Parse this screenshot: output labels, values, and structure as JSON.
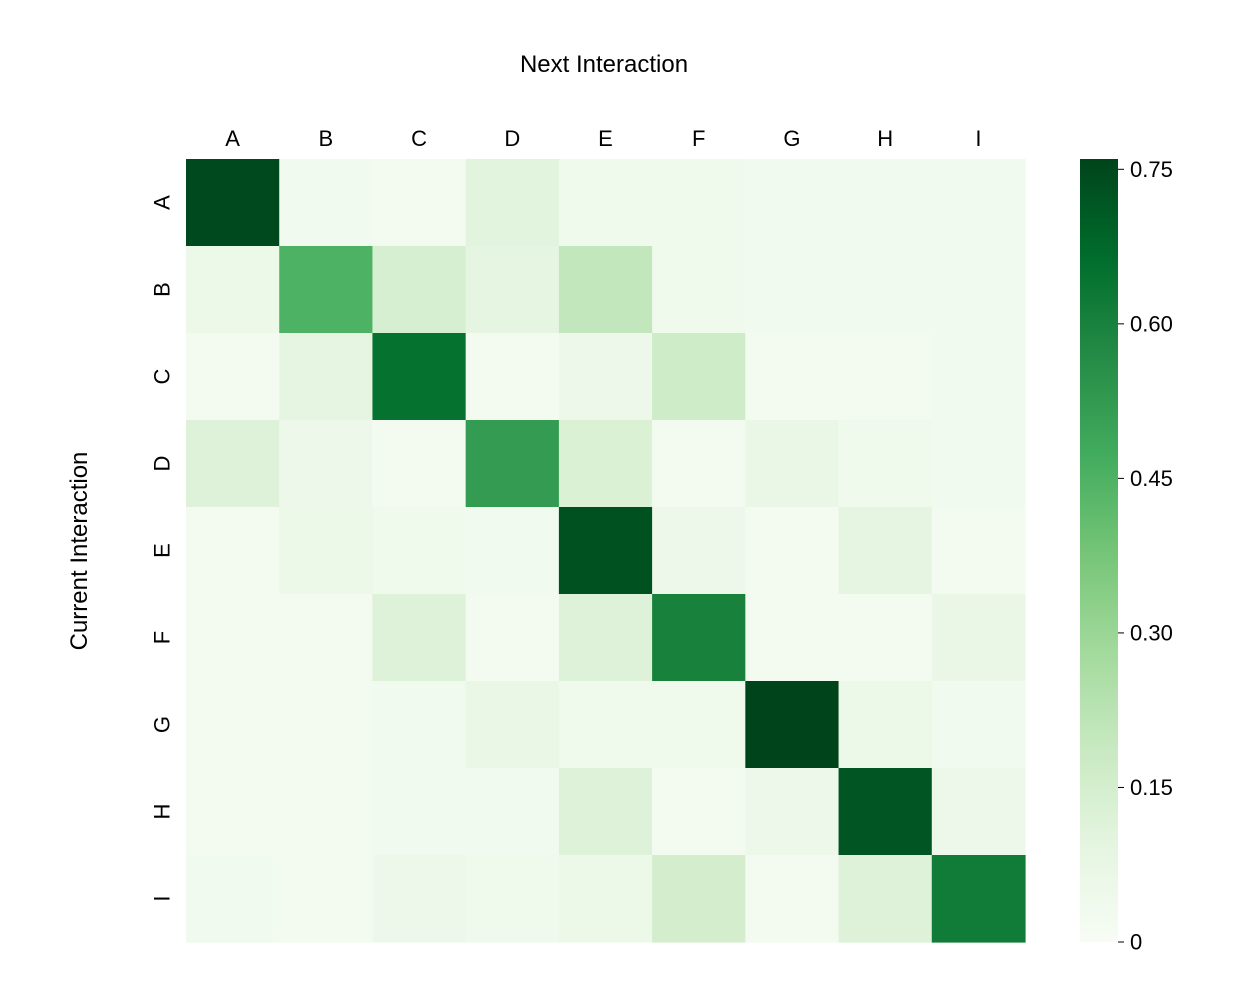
{
  "chart_data": {
    "type": "heatmap",
    "title": "Next Interaction",
    "xlabel": "Next Interaction",
    "ylabel": "Current Interaction",
    "x_categories": [
      "A",
      "B",
      "C",
      "D",
      "E",
      "F",
      "G",
      "H",
      "I"
    ],
    "y_categories": [
      "A",
      "B",
      "C",
      "D",
      "E",
      "F",
      "G",
      "H",
      "I"
    ],
    "values": [
      [
        0.75,
        0.03,
        0.02,
        0.1,
        0.04,
        0.04,
        0.03,
        0.03,
        0.03
      ],
      [
        0.06,
        0.45,
        0.14,
        0.09,
        0.2,
        0.04,
        0.03,
        0.03,
        0.03
      ],
      [
        0.02,
        0.09,
        0.65,
        0.02,
        0.05,
        0.17,
        0.02,
        0.02,
        0.03
      ],
      [
        0.12,
        0.05,
        0.02,
        0.52,
        0.13,
        0.02,
        0.07,
        0.04,
        0.03
      ],
      [
        0.02,
        0.06,
        0.04,
        0.03,
        0.73,
        0.05,
        0.02,
        0.09,
        0.02
      ],
      [
        0.02,
        0.02,
        0.12,
        0.02,
        0.12,
        0.6,
        0.02,
        0.02,
        0.07
      ],
      [
        0.02,
        0.02,
        0.03,
        0.07,
        0.04,
        0.04,
        0.76,
        0.06,
        0.03
      ],
      [
        0.02,
        0.02,
        0.03,
        0.03,
        0.12,
        0.02,
        0.05,
        0.72,
        0.05
      ],
      [
        0.03,
        0.02,
        0.05,
        0.04,
        0.06,
        0.15,
        0.02,
        0.12,
        0.62
      ]
    ],
    "colorbar": {
      "min": 0,
      "max": 0.76,
      "ticks": [
        0,
        0.15,
        0.3,
        0.45,
        0.6,
        0.75
      ],
      "tick_labels": [
        "0",
        "0.15",
        "0.30",
        "0.45",
        "0.60",
        "0.75"
      ],
      "colormap": "Greens"
    },
    "legend": "colorbar-right",
    "grid": false
  }
}
